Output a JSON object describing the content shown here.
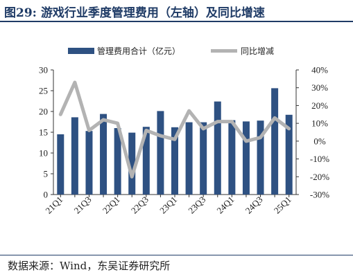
{
  "figure": {
    "number": "图29:",
    "title": "游戏行业季度管理费用（左轴）及同比增速"
  },
  "source": "数据来源：Wind，东吴证券研究所",
  "colors": {
    "bar": "#2e5182",
    "line": "#b3b3b3",
    "title": "#1f3b66"
  },
  "chart_data": {
    "type": "bar",
    "categories": [
      "21Q1",
      "21Q2",
      "21Q3",
      "21Q4",
      "22Q1",
      "22Q2",
      "22Q3",
      "22Q4",
      "23Q1",
      "23Q2",
      "23Q3",
      "23Q4",
      "24Q1",
      "24Q2",
      "24Q3",
      "24Q4",
      "25Q1"
    ],
    "x_tick_labels": [
      "21Q1",
      "21Q3",
      "22Q1",
      "22Q3",
      "23Q1",
      "23Q3",
      "24Q1",
      "24Q3",
      "25Q1"
    ],
    "series": [
      {
        "name": "管理费用合计（亿元）",
        "type": "bar",
        "axis": "left",
        "values": [
          14.5,
          18.6,
          15.3,
          19.4,
          16.0,
          14.9,
          16.3,
          20.1,
          16.2,
          17.4,
          17.4,
          22.4,
          17.9,
          17.6,
          17.8,
          25.6,
          19.2
        ]
      },
      {
        "name": "同比增减",
        "type": "line",
        "axis": "right",
        "values": [
          15,
          33,
          6,
          12,
          10,
          -20,
          6,
          3,
          1,
          17,
          7,
          11,
          11,
          0,
          2,
          13,
          7
        ]
      }
    ],
    "left_axis": {
      "min": 0,
      "max": 30,
      "ticks": [
        "0",
        "5",
        "10",
        "15",
        "20",
        "25",
        "30"
      ]
    },
    "right_axis": {
      "min": -30,
      "max": 40,
      "ticks": [
        "-30%",
        "-20%",
        "-10%",
        "0%",
        "10%",
        "20%",
        "30%",
        "40%"
      ]
    },
    "legend_position": "top",
    "grid": false
  }
}
